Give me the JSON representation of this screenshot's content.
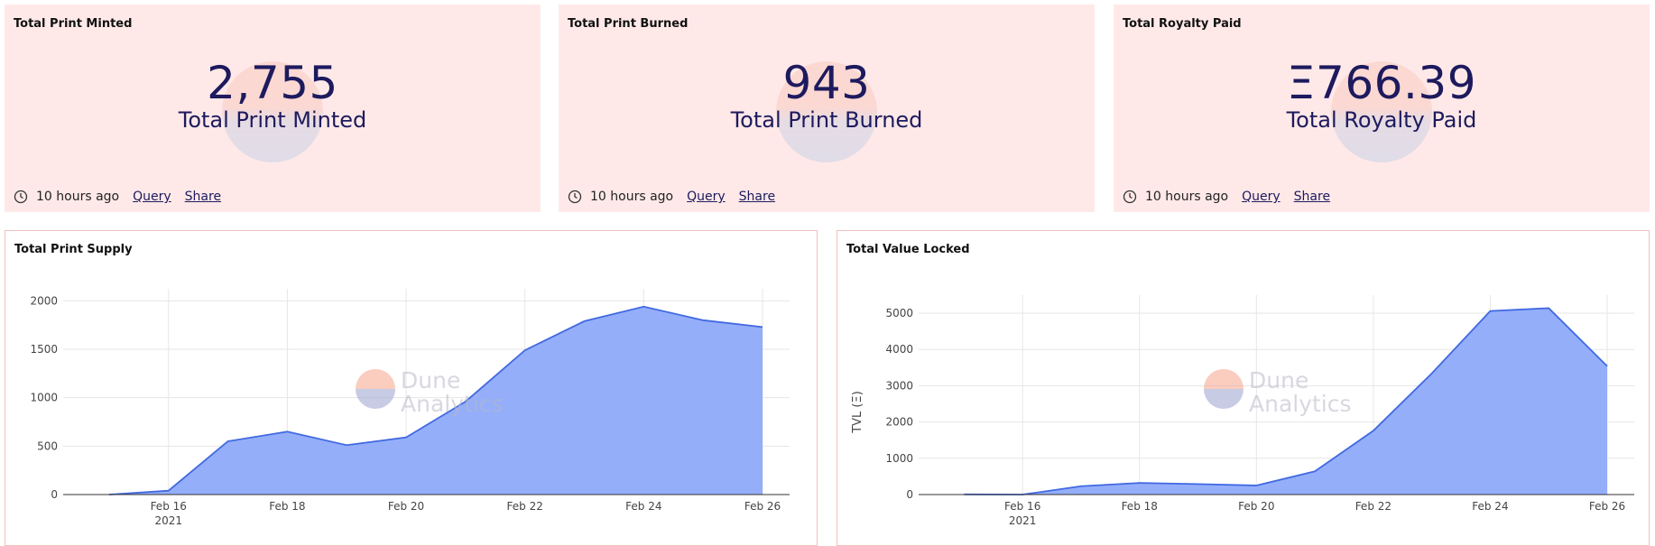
{
  "counters": [
    {
      "title": "Total Print Minted",
      "value": "2,755",
      "label": "Total Print Minted",
      "time": "10 hours ago",
      "query": "Query",
      "share": "Share"
    },
    {
      "title": "Total Print Burned",
      "value": "943",
      "label": "Total Print Burned",
      "time": "10 hours ago",
      "query": "Query",
      "share": "Share"
    },
    {
      "title": "Total Royalty Paid",
      "value": "Ξ766.39",
      "label": "Total Royalty Paid",
      "time": "10 hours ago",
      "query": "Query",
      "share": "Share"
    }
  ],
  "watermark": {
    "line1": "Dune",
    "line2": "Analytics"
  },
  "colors": {
    "card_bg": "#ffe9e8",
    "area_fill": "#94aefa",
    "area_line": "#4169e1",
    "text_dark": "#1d1a5e",
    "border": "#f1c1bb"
  },
  "chart_data": [
    {
      "type": "area",
      "title": "Total Print Supply",
      "xlabel": "",
      "ylabel": "",
      "x": [
        "Feb 15",
        "Feb 16",
        "Feb 17",
        "Feb 18",
        "Feb 19",
        "Feb 20",
        "Feb 21",
        "Feb 22",
        "Feb 23",
        "Feb 24",
        "Feb 25",
        "Feb 26"
      ],
      "values": [
        0,
        40,
        550,
        650,
        510,
        590,
        960,
        1490,
        1790,
        1940,
        1800,
        1730
      ],
      "tick_labels": [
        "Feb 16",
        "Feb 18",
        "Feb 20",
        "Feb 22",
        "Feb 24",
        "Feb 26"
      ],
      "year_label": "2021",
      "yticks": [
        0,
        500,
        1000,
        1500,
        2000
      ],
      "ylim": [
        0,
        2050
      ],
      "grid": true,
      "legend": "none"
    },
    {
      "type": "area",
      "title": "Total Value Locked",
      "xlabel": "",
      "ylabel": "TVL (Ξ)",
      "x": [
        "Feb 15",
        "Feb 16",
        "Feb 17",
        "Feb 18",
        "Feb 19",
        "Feb 20",
        "Feb 21",
        "Feb 22",
        "Feb 23",
        "Feb 24",
        "Feb 25",
        "Feb 26"
      ],
      "values": [
        5,
        0,
        230,
        320,
        290,
        250,
        640,
        1760,
        3340,
        5060,
        5140,
        3540
      ],
      "tick_labels": [
        "Feb 16",
        "Feb 18",
        "Feb 20",
        "Feb 22",
        "Feb 24",
        "Feb 26"
      ],
      "year_label": "2021",
      "yticks": [
        0,
        1000,
        2000,
        3000,
        4000,
        5000
      ],
      "ylim": [
        0,
        5300
      ],
      "grid": true,
      "legend": "none"
    }
  ]
}
